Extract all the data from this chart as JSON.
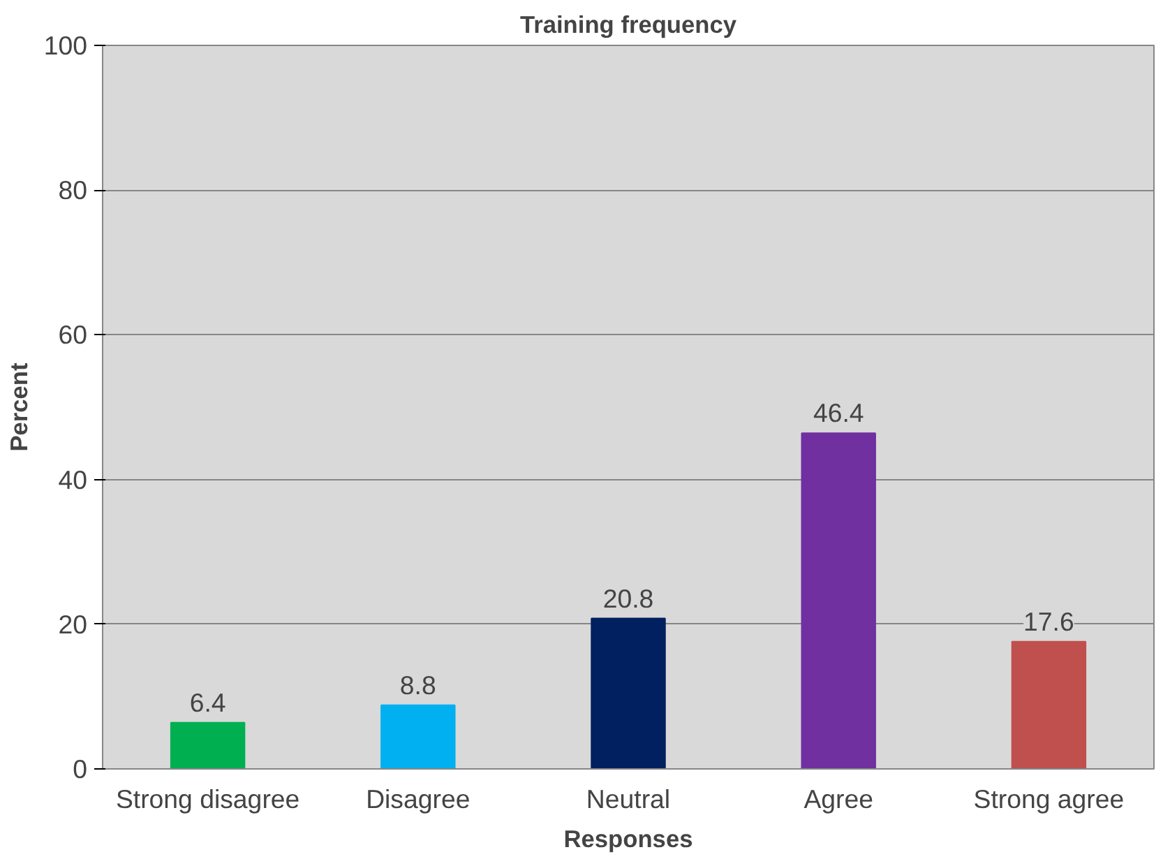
{
  "chart_data": {
    "type": "bar",
    "title": "Training frequency",
    "xlabel": "Responses",
    "ylabel": "Percent",
    "categories": [
      "Strong disagree",
      "Disagree",
      "Neutral",
      "Agree",
      "Strong agree"
    ],
    "values": [
      6.4,
      8.8,
      20.8,
      46.4,
      17.6
    ],
    "colors": [
      "#00b050",
      "#00b0f0",
      "#002060",
      "#7030a0",
      "#c0504d"
    ],
    "ylim": [
      0,
      100
    ],
    "yticks": [
      0,
      20,
      40,
      60,
      80,
      100
    ],
    "grid": "y",
    "data_labels": true
  }
}
